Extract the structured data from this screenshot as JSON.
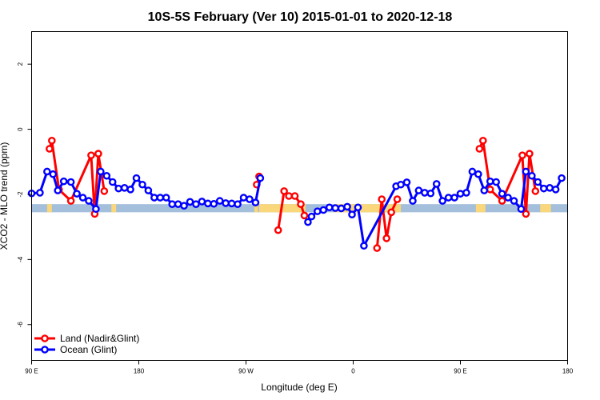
{
  "chart_data": {
    "type": "line",
    "title": "10S-5S February (Ver 10)   2015-01-01 to 2020-12-18",
    "xlabel": "Longitude (deg E)",
    "ylabel": "XCO2 - MLO trend (ppm)",
    "xlim": [
      90,
      540
    ],
    "ylim": [
      -7.1,
      3
    ],
    "x_tick_values": [
      90,
      180,
      270,
      360,
      450,
      540
    ],
    "x_tick_labels": [
      "90 E",
      "180",
      "90 W",
      "0",
      "90 E",
      "180"
    ],
    "y_ticks": [
      -6,
      -4,
      -2,
      0,
      2
    ],
    "grid": false,
    "legend": "bottom-left",
    "band": {
      "y_range": [
        -2.55,
        -2.3
      ],
      "ocean_color": "#a3bfdb",
      "land_color": "#f9d77a"
    },
    "land_spans": [
      [
        103,
        107
      ],
      [
        157,
        161
      ],
      [
        277,
        280
      ],
      [
        281,
        320
      ],
      [
        344,
        400
      ],
      [
        463,
        471
      ],
      [
        517,
        526
      ]
    ],
    "series": [
      {
        "name": "Land (Nadir&Glint)",
        "color": "#ff0000",
        "points": [
          [
            105,
            -0.6
          ],
          [
            107,
            -0.35
          ],
          [
            113,
            -1.85
          ],
          [
            123,
            -2.2
          ],
          [
            140,
            -0.8
          ],
          [
            143,
            -2.6
          ],
          [
            146,
            -0.75
          ],
          [
            151,
            -1.9
          ],
          [
            279,
            -1.7
          ],
          [
            281,
            -1.45
          ],
          [
            297,
            -3.1
          ],
          [
            302,
            -1.9
          ],
          [
            306,
            -2.05
          ],
          [
            311,
            -2.05
          ],
          [
            316,
            -2.3
          ],
          [
            319,
            -2.65
          ],
          [
            380,
            -3.65
          ],
          [
            384,
            -2.15
          ],
          [
            388,
            -3.35
          ],
          [
            392,
            -2.55
          ],
          [
            397,
            -2.15
          ],
          [
            466,
            -0.6
          ],
          [
            469,
            -0.35
          ],
          [
            475,
            -1.85
          ],
          [
            485,
            -2.2
          ],
          [
            502,
            -0.8
          ],
          [
            505,
            -2.6
          ],
          [
            508,
            -0.75
          ],
          [
            513,
            -1.9
          ]
        ],
        "breaks_after_index": [
          7,
          9,
          15,
          20
        ]
      },
      {
        "name": "Ocean (Glint)",
        "color": "#0000ff",
        "points": [
          [
            90,
            -1.97
          ],
          [
            97,
            -1.95
          ],
          [
            103,
            -1.3
          ],
          [
            108,
            -1.38
          ],
          [
            112,
            -1.88
          ],
          [
            117,
            -1.6
          ],
          [
            123,
            -1.62
          ],
          [
            128,
            -1.98
          ],
          [
            133,
            -2.1
          ],
          [
            138,
            -2.2
          ],
          [
            144,
            -2.45
          ],
          [
            148,
            -1.3
          ],
          [
            153,
            -1.43
          ],
          [
            158,
            -1.62
          ],
          [
            163,
            -1.82
          ],
          [
            168,
            -1.8
          ],
          [
            173,
            -1.85
          ],
          [
            178,
            -1.5
          ],
          [
            183,
            -1.7
          ],
          [
            188,
            -1.88
          ],
          [
            193,
            -2.1
          ],
          [
            198,
            -2.1
          ],
          [
            203,
            -2.1
          ],
          [
            208,
            -2.3
          ],
          [
            213,
            -2.3
          ],
          [
            218,
            -2.35
          ],
          [
            223,
            -2.23
          ],
          [
            228,
            -2.3
          ],
          [
            233,
            -2.22
          ],
          [
            238,
            -2.28
          ],
          [
            243,
            -2.29
          ],
          [
            248,
            -2.2
          ],
          [
            253,
            -2.27
          ],
          [
            258,
            -2.28
          ],
          [
            263,
            -2.3
          ],
          [
            268,
            -2.1
          ],
          [
            273,
            -2.15
          ],
          [
            278,
            -2.25
          ],
          [
            282,
            -1.5
          ],
          [
            322,
            -2.85
          ],
          [
            325,
            -2.68
          ],
          [
            330,
            -2.52
          ],
          [
            335,
            -2.48
          ],
          [
            340,
            -2.4
          ],
          [
            345,
            -2.42
          ],
          [
            350,
            -2.43
          ],
          [
            355,
            -2.38
          ],
          [
            359,
            -2.62
          ],
          [
            364,
            -2.4
          ],
          [
            369,
            -3.58
          ],
          [
            396,
            -1.75
          ],
          [
            400,
            -1.7
          ],
          [
            405,
            -1.63
          ],
          [
            410,
            -2.2
          ],
          [
            415,
            -1.88
          ],
          [
            420,
            -1.95
          ],
          [
            425,
            -1.97
          ],
          [
            430,
            -1.68
          ],
          [
            435,
            -2.2
          ],
          [
            440,
            -2.1
          ],
          [
            445,
            -2.1
          ],
          [
            450,
            -1.98
          ],
          [
            455,
            -1.95
          ],
          [
            460,
            -1.3
          ],
          [
            465,
            -1.38
          ],
          [
            470,
            -1.88
          ],
          [
            475,
            -1.6
          ],
          [
            480,
            -1.62
          ],
          [
            485,
            -1.98
          ],
          [
            490,
            -2.1
          ],
          [
            495,
            -2.2
          ],
          [
            501,
            -2.45
          ],
          [
            505,
            -1.3
          ],
          [
            510,
            -1.43
          ],
          [
            515,
            -1.62
          ],
          [
            520,
            -1.82
          ],
          [
            525,
            -1.8
          ],
          [
            530,
            -1.85
          ],
          [
            535,
            -1.5
          ]
        ],
        "breaks_after_index": [
          38
        ]
      }
    ]
  }
}
